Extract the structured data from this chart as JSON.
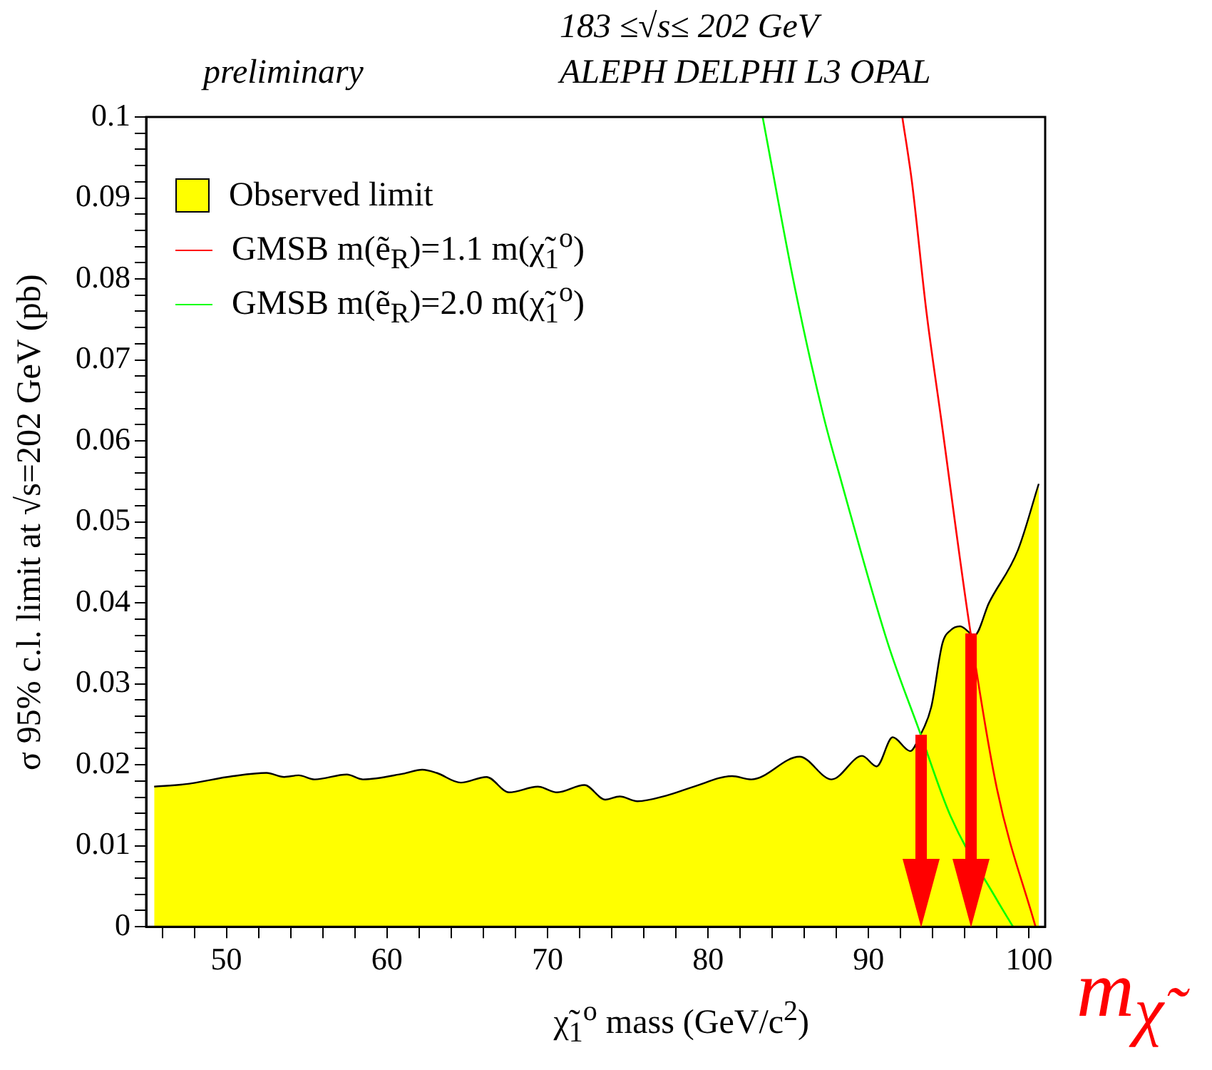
{
  "chart_data": {
    "type": "line",
    "title": "183 ≤√s≤ 202 GeV",
    "subtitle": "ALEPH DELPHI L3 OPAL",
    "xlabel": "χ̃$_{1}$$^{o}$ mass (GeV/c$^{2}$)",
    "ylabel": "σ 95% c.l. limit at √s=202 GeV (pb)",
    "annotations": [
      "preliminary",
      "m$_{χ̃}$"
    ],
    "xlim": [
      45,
      101
    ],
    "ylim": [
      0,
      0.1
    ],
    "xticks": [
      {
        "value": 46,
        "label": null
      },
      {
        "value": 48,
        "label": null
      },
      50,
      {
        "value": 52,
        "label": null
      },
      {
        "value": 54,
        "label": null
      },
      {
        "value": 56,
        "label": null
      },
      {
        "value": 58,
        "label": null
      },
      60,
      {
        "value": 62,
        "label": null
      },
      {
        "value": 64,
        "label": null
      },
      {
        "value": 66,
        "label": null
      },
      {
        "value": 68,
        "label": null
      },
      70,
      {
        "value": 72,
        "label": null
      },
      {
        "value": 74,
        "label": null
      },
      {
        "value": 76,
        "label": null
      },
      {
        "value": 78,
        "label": null
      },
      80,
      {
        "value": 82,
        "label": null
      },
      {
        "value": 84,
        "label": null
      },
      {
        "value": 86,
        "label": null
      },
      {
        "value": 88,
        "label": null
      },
      90,
      {
        "value": 92,
        "label": null
      },
      {
        "value": 94,
        "label": null
      },
      {
        "value": 96,
        "label": null
      },
      {
        "value": 98,
        "label": null
      },
      100
    ],
    "yticks": [
      0,
      {
        "value": 0.002,
        "label": null
      },
      {
        "value": 0.004,
        "label": null
      },
      {
        "value": 0.006,
        "label": null
      },
      {
        "value": 0.008,
        "label": null
      },
      0.01,
      {
        "value": 0.012,
        "label": null
      },
      {
        "value": 0.014,
        "label": null
      },
      {
        "value": 0.016,
        "label": null
      },
      {
        "value": 0.018,
        "label": null
      },
      0.02,
      {
        "value": 0.022,
        "label": null
      },
      {
        "value": 0.024,
        "label": null
      },
      {
        "value": 0.026,
        "label": null
      },
      {
        "value": 0.028,
        "label": null
      },
      0.03,
      {
        "value": 0.032,
        "label": null
      },
      {
        "value": 0.034,
        "label": null
      },
      {
        "value": 0.036,
        "label": null
      },
      {
        "value": 0.038,
        "label": null
      },
      0.04,
      {
        "value": 0.042,
        "label": null
      },
      {
        "value": 0.044,
        "label": null
      },
      {
        "value": 0.046,
        "label": null
      },
      {
        "value": 0.048,
        "label": null
      },
      0.05,
      {
        "value": 0.052,
        "label": null
      },
      {
        "value": 0.054,
        "label": null
      },
      {
        "value": 0.056,
        "label": null
      },
      {
        "value": 0.058,
        "label": null
      },
      0.06,
      {
        "value": 0.062,
        "label": null
      },
      {
        "value": 0.064,
        "label": null
      },
      {
        "value": 0.066,
        "label": null
      },
      {
        "value": 0.068,
        "label": null
      },
      0.07,
      {
        "value": 0.072,
        "label": null
      },
      {
        "value": 0.074,
        "label": null
      },
      {
        "value": 0.076,
        "label": null
      },
      {
        "value": 0.078,
        "label": null
      },
      0.08,
      {
        "value": 0.082,
        "label": null
      },
      {
        "value": 0.084,
        "label": null
      },
      {
        "value": 0.086,
        "label": null
      },
      {
        "value": 0.088,
        "label": null
      },
      0.09,
      {
        "value": 0.092,
        "label": null
      },
      {
        "value": 0.094,
        "label": null
      },
      {
        "value": 0.096,
        "label": null
      },
      {
        "value": 0.098,
        "label": null
      },
      0.1
    ],
    "legend": "top left",
    "grid": false,
    "marker": "none",
    "series": [
      {
        "name": "Observed limit",
        "type": "area",
        "color": "#ffff00",
        "x": [
          45.5,
          47.4,
          50.4,
          52.5,
          53.6,
          54.5,
          55.5,
          57.5,
          58.5,
          61.0,
          62.2,
          63.1,
          64.6,
          66.2,
          67.6,
          69.4,
          70.6,
          72.3,
          73.6,
          74.5,
          75.6,
          77.4,
          79.1,
          81.5,
          82.7,
          85.7,
          87.7,
          89.6,
          90.5,
          91.5,
          92.6,
          93.2,
          93.9,
          94.6,
          95.1,
          95.7,
          96.6,
          97.5,
          99.3,
          100.6
        ],
        "values": [
          0.0173,
          0.0176,
          0.0186,
          0.019,
          0.0185,
          0.0187,
          0.0182,
          0.0188,
          0.0182,
          0.0189,
          0.0194,
          0.019,
          0.0178,
          0.0185,
          0.0166,
          0.0173,
          0.0166,
          0.0175,
          0.0157,
          0.0161,
          0.0155,
          0.0162,
          0.0173,
          0.0186,
          0.0182,
          0.021,
          0.0182,
          0.0211,
          0.0198,
          0.0234,
          0.0217,
          0.0236,
          0.0271,
          0.035,
          0.0366,
          0.0371,
          0.036,
          0.04,
          0.0465,
          0.0547
        ]
      },
      {
        "name": "GMSB m(ẽ$_{R}$)=1.1 m(χ̃$_{1}$$^{o}$)",
        "color": "#ff0000",
        "x": [
          92.1,
          92.7,
          93.6,
          94.5,
          96.3,
          98.0,
          100.4
        ],
        "values": [
          0.1,
          0.092,
          0.076,
          0.063,
          0.037,
          0.017,
          0
        ]
      },
      {
        "name": "GMSB m(ẽ$_{R}$)=2.0 m(χ̃$_{1}$$^{o}$)",
        "color": "#00ff00",
        "x": [
          83.4,
          85.4,
          87.2,
          88.3,
          91.2,
          93.2,
          95.1,
          98.0,
          99.0
        ],
        "values": [
          0.1,
          0.079,
          0.063,
          0.055,
          0.035,
          0.024,
          0.0137,
          0.0033,
          0
        ]
      }
    ]
  }
}
